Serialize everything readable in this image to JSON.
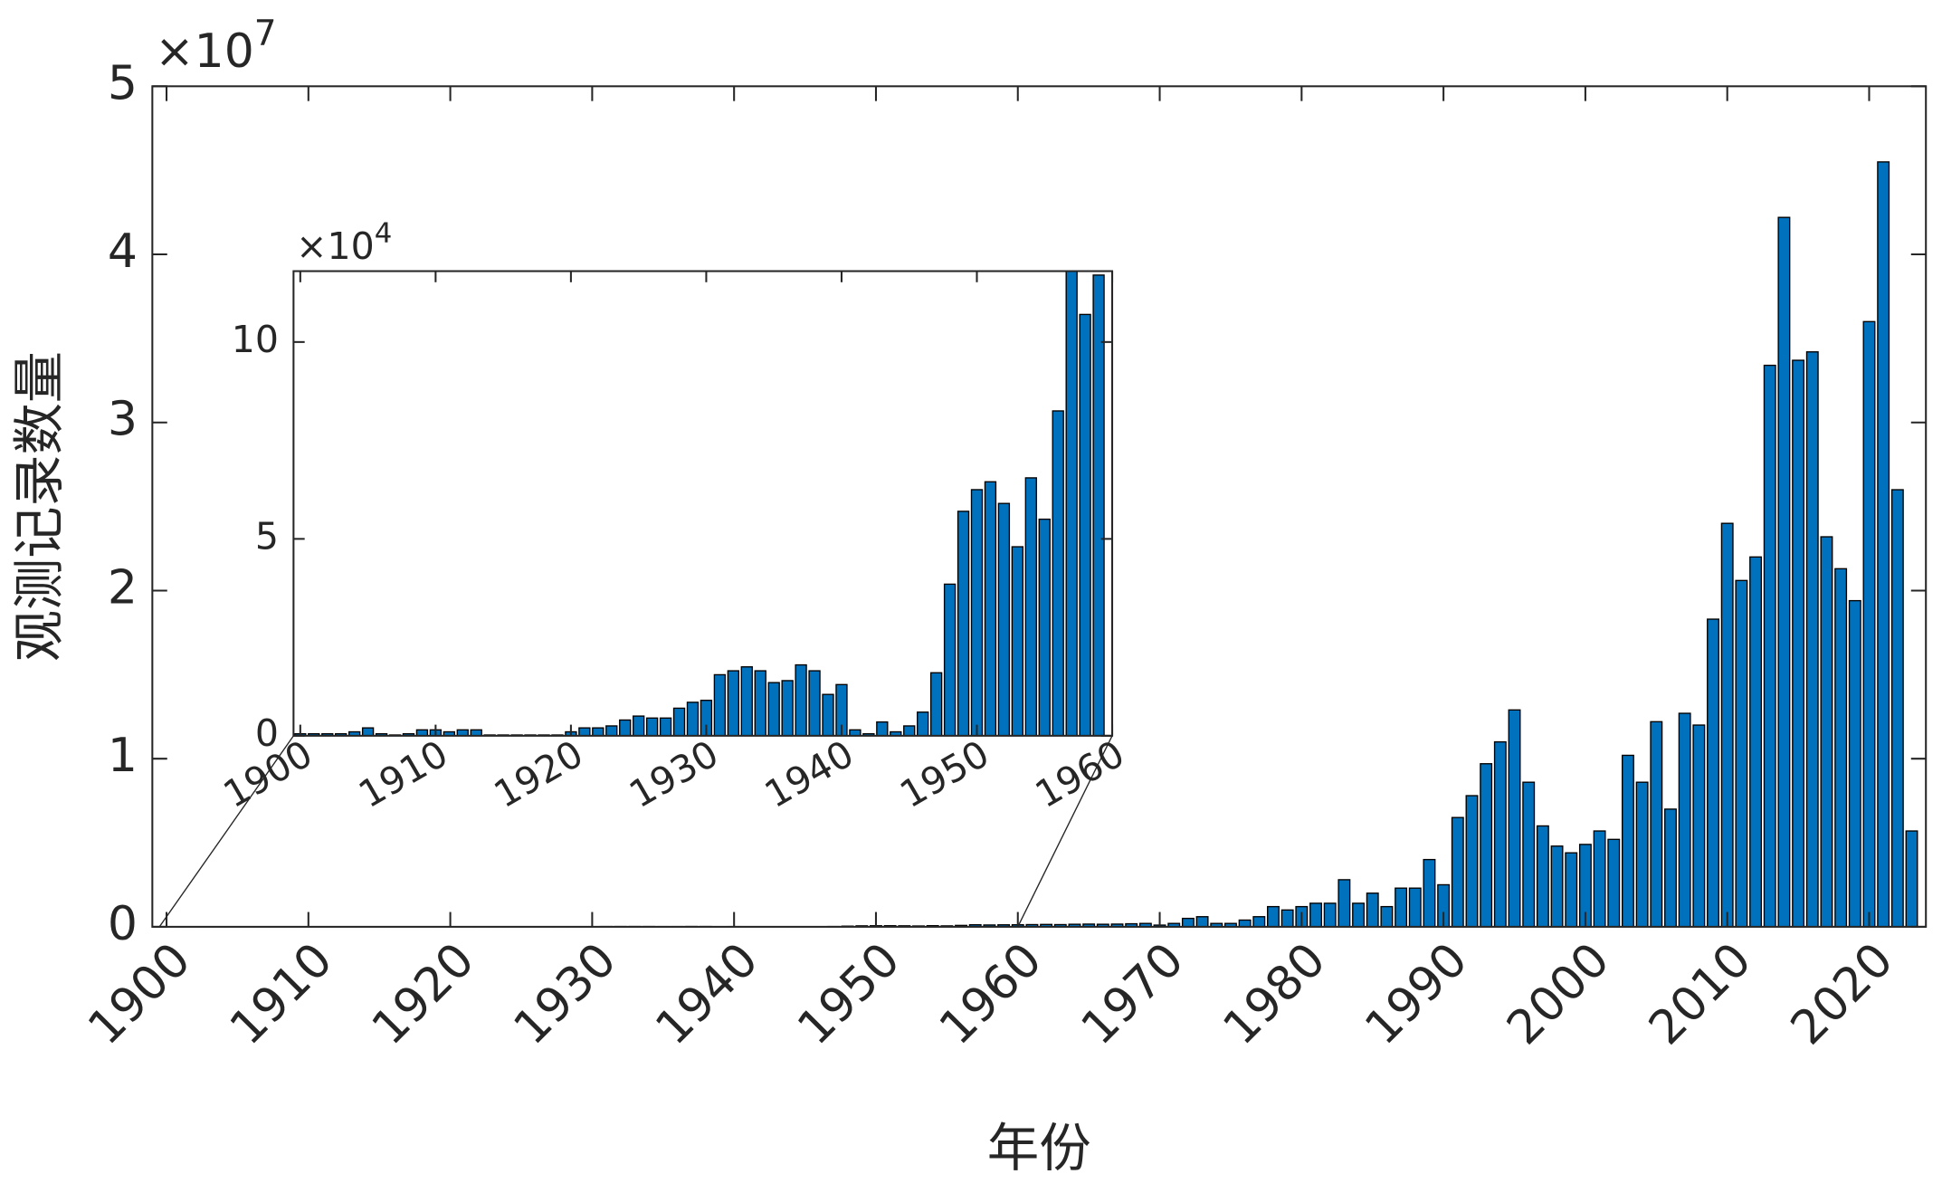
{
  "chart_data": [
    {
      "type": "bar",
      "xlabel": "年份",
      "ylabel": "观测记录数量",
      "y_multiplier": "×10",
      "y_exponent": "7",
      "x": [
        1900,
        1901,
        1902,
        1903,
        1904,
        1905,
        1906,
        1907,
        1908,
        1909,
        1910,
        1911,
        1912,
        1913,
        1914,
        1915,
        1916,
        1917,
        1918,
        1919,
        1920,
        1921,
        1922,
        1923,
        1924,
        1925,
        1926,
        1927,
        1928,
        1929,
        1930,
        1931,
        1932,
        1933,
        1934,
        1935,
        1936,
        1937,
        1938,
        1939,
        1940,
        1941,
        1942,
        1943,
        1944,
        1945,
        1946,
        1947,
        1948,
        1949,
        1950,
        1951,
        1952,
        1953,
        1954,
        1955,
        1956,
        1957,
        1958,
        1959,
        1960,
        1961,
        1962,
        1963,
        1964,
        1965,
        1966,
        1967,
        1968,
        1969,
        1970,
        1971,
        1972,
        1973,
        1974,
        1975,
        1976,
        1977,
        1978,
        1979,
        1980,
        1981,
        1982,
        1983,
        1984,
        1985,
        1986,
        1987,
        1988,
        1989,
        1990,
        1991,
        1992,
        1993,
        1994,
        1995,
        1996,
        1997,
        1998,
        1999,
        2000,
        2001,
        2002,
        2003,
        2004,
        2005,
        2006,
        2007,
        2008,
        2009,
        2010,
        2011,
        2012,
        2013,
        2014,
        2015,
        2016,
        2017,
        2018,
        2019,
        2020,
        2021,
        2022,
        2023
      ],
      "values": [
        5e-05,
        5e-05,
        5e-05,
        5e-05,
        0.0001,
        0.0002,
        5e-05,
        2e-05,
        5e-05,
        0.00015,
        0.00015,
        0.0001,
        0.00015,
        0.00015,
        2e-05,
        2e-05,
        2e-05,
        2e-05,
        2e-05,
        2e-05,
        0.0001,
        0.0002,
        0.0002,
        0.00025,
        0.0004,
        0.0005,
        0.00045,
        0.00045,
        0.0007,
        0.00085,
        0.0009,
        0.00155,
        0.00165,
        0.00175,
        0.00165,
        0.00135,
        0.0014,
        0.0018,
        0.00165,
        0.00105,
        0.0013,
        0.00015,
        5e-05,
        0.00035,
        0.0001,
        0.00025,
        0.0006,
        0.0016,
        0.00385,
        0.0057,
        0.00625,
        0.00645,
        0.0059,
        0.0048,
        0.00655,
        0.0055,
        0.00825,
        0.012,
        0.0107,
        0.0117,
        0.012,
        0.013,
        0.014,
        0.013,
        0.015,
        0.016,
        0.015,
        0.016,
        0.018,
        0.02,
        0.01,
        0.02,
        0.05,
        0.06,
        0.02,
        0.02,
        0.04,
        0.06,
        0.12,
        0.1,
        0.12,
        0.14,
        0.14,
        0.28,
        0.14,
        0.2,
        0.12,
        0.23,
        0.23,
        0.4,
        0.25,
        0.65,
        0.78,
        0.97,
        1.1,
        1.29,
        0.86,
        0.6,
        0.48,
        0.44,
        0.49,
        0.57,
        0.52,
        1.02,
        0.86,
        1.22,
        0.7,
        1.27,
        1.2,
        1.83,
        2.4,
        2.06,
        2.2,
        3.34,
        4.22,
        3.37,
        3.42,
        2.32,
        2.13,
        1.94,
        3.6,
        4.55,
        2.6,
        0.57
      ],
      "color": "#0072bd",
      "xlim": [
        1899,
        2024
      ],
      "ylim": [
        0,
        5
      ],
      "xticks": [
        1900,
        1910,
        1920,
        1930,
        1940,
        1950,
        1960,
        1970,
        1980,
        1990,
        2000,
        2010,
        2020
      ],
      "yticks": [
        0,
        1,
        2,
        3,
        4,
        5
      ]
    },
    {
      "type": "bar",
      "y_multiplier": "×10",
      "y_exponent": "4",
      "x": [
        1900,
        1901,
        1902,
        1903,
        1904,
        1905,
        1906,
        1907,
        1908,
        1909,
        1910,
        1911,
        1912,
        1913,
        1914,
        1915,
        1916,
        1917,
        1918,
        1919,
        1920,
        1921,
        1922,
        1923,
        1924,
        1925,
        1926,
        1927,
        1928,
        1929,
        1930,
        1931,
        1932,
        1933,
        1934,
        1935,
        1936,
        1937,
        1938,
        1939,
        1940,
        1941,
        1942,
        1943,
        1944,
        1945,
        1946,
        1947,
        1948,
        1949,
        1950,
        1951,
        1952,
        1953,
        1954,
        1955,
        1956,
        1957,
        1958,
        1959
      ],
      "values": [
        0.05,
        0.05,
        0.05,
        0.05,
        0.1,
        0.2,
        0.05,
        0.02,
        0.05,
        0.15,
        0.15,
        0.1,
        0.15,
        0.15,
        0.02,
        0.02,
        0.02,
        0.02,
        0.02,
        0.02,
        0.1,
        0.2,
        0.2,
        0.25,
        0.4,
        0.5,
        0.45,
        0.45,
        0.7,
        0.85,
        0.9,
        1.55,
        1.65,
        1.75,
        1.65,
        1.35,
        1.4,
        1.8,
        1.65,
        1.05,
        1.3,
        0.15,
        0.05,
        0.35,
        0.1,
        0.25,
        0.6,
        1.6,
        3.85,
        5.7,
        6.25,
        6.45,
        5.9,
        4.8,
        6.55,
        5.5,
        8.25,
        12,
        10.7,
        11.7
      ],
      "color": "#0072bd",
      "xlim": [
        1899.5,
        1960
      ],
      "ylim": [
        0,
        11.8
      ],
      "xticks": [
        1900,
        1910,
        1920,
        1930,
        1940,
        1950,
        1960
      ],
      "yticks": [
        0,
        5,
        10
      ]
    }
  ]
}
